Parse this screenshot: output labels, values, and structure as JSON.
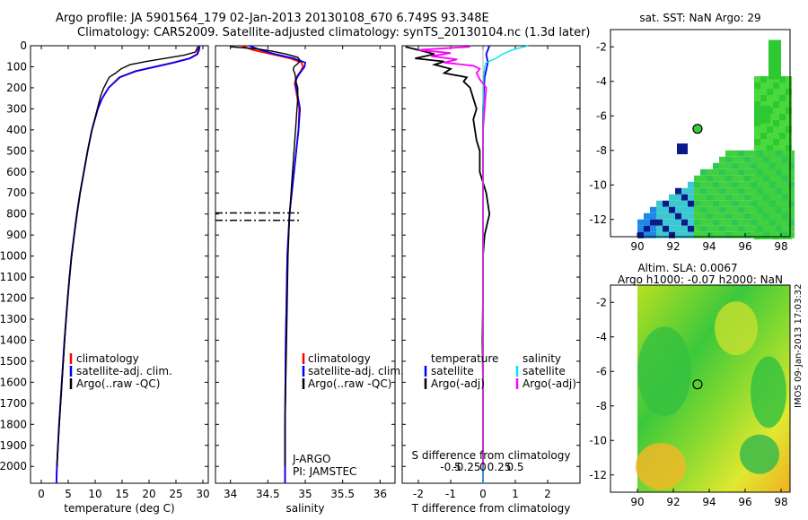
{
  "header": {
    "line1": "Argo profile: JA 5901564_179 02-Jan-2013 20130108_670 6.749S 93.348E",
    "line2": "Climatology: CARS2009. Satellite-adjusted climatology: synTS_20130104.nc (1.3d later)"
  },
  "stamp": "IMOS 09-Jan-2013 17:03:32",
  "chart_data": [
    {
      "id": "temperature",
      "type": "line",
      "xlabel": "temperature (deg C)",
      "ylabel": "",
      "xlim": [
        -2,
        31
      ],
      "ylim": [
        2080,
        0
      ],
      "xticks": [
        0,
        5,
        10,
        15,
        20,
        25,
        30
      ],
      "xticklabels": [
        "0",
        "5",
        "10",
        "15",
        "20",
        "25",
        "30"
      ],
      "yticks": [
        0,
        100,
        200,
        300,
        400,
        500,
        600,
        700,
        800,
        900,
        1000,
        1100,
        1200,
        1300,
        1400,
        1500,
        1600,
        1700,
        1800,
        1900,
        2000
      ],
      "yticklabels": [
        "0",
        "100",
        "200",
        "300",
        "400",
        "500",
        "600",
        "700",
        "800",
        "900",
        "1000",
        "1100",
        "1200",
        "1300",
        "1400",
        "1500",
        "1600",
        "1700",
        "1800",
        "1900",
        "2000"
      ],
      "legend": [
        "climatology",
        "satellite-adj. clim.",
        "Argo(..raw -QC)"
      ],
      "series": [
        {
          "name": "climatology",
          "color": "#ff0000",
          "depth": [
            0,
            20,
            40,
            60,
            80,
            100,
            120,
            150,
            200,
            250,
            300,
            400,
            500,
            600,
            700,
            800,
            1000,
            1200,
            1400,
            1600,
            1800,
            2000,
            2080
          ],
          "values": [
            29.2,
            29.1,
            28.9,
            27.5,
            24.5,
            21.0,
            17.5,
            14.5,
            12.5,
            11.3,
            10.5,
            9.4,
            8.6,
            7.9,
            7.2,
            6.6,
            5.6,
            4.9,
            4.3,
            3.8,
            3.3,
            2.9,
            2.8
          ]
        },
        {
          "name": "satellite-adj. clim.",
          "color": "#0000ff",
          "depth": [
            0,
            20,
            40,
            60,
            80,
            100,
            120,
            150,
            200,
            250,
            300,
            400,
            500,
            600,
            700,
            800,
            1000,
            1200,
            1400,
            1600,
            1800,
            2000,
            2080
          ],
          "values": [
            29.4,
            29.3,
            29.0,
            27.6,
            24.7,
            21.2,
            17.7,
            14.6,
            12.5,
            11.3,
            10.5,
            9.4,
            8.6,
            7.9,
            7.2,
            6.6,
            5.6,
            4.9,
            4.3,
            3.8,
            3.3,
            2.9,
            2.8
          ]
        },
        {
          "name": "Argo(..raw -QC)",
          "color": "#000000",
          "depth": [
            5,
            15,
            30,
            45,
            60,
            75,
            90,
            110,
            130,
            150,
            170,
            200,
            240,
            280,
            330,
            400,
            500,
            700,
            900,
            1100,
            1300,
            1500,
            1700,
            1900,
            2000
          ],
          "values": [
            29.0,
            28.9,
            28.6,
            26.5,
            23.0,
            19.5,
            16.5,
            14.8,
            13.8,
            12.6,
            12.2,
            11.6,
            11.0,
            10.6,
            10.1,
            9.4,
            8.6,
            7.2,
            6.1,
            5.2,
            4.6,
            4.1,
            3.6,
            3.1,
            2.9
          ]
        }
      ]
    },
    {
      "id": "salinity",
      "type": "line",
      "xlabel": "salinity",
      "xlim": [
        33.8,
        36.2
      ],
      "ylim": [
        2080,
        0
      ],
      "xticks": [
        34,
        34.5,
        35,
        35.5,
        36
      ],
      "xticklabels": [
        "34",
        "34.5",
        "35",
        "35.5",
        "36"
      ],
      "legend": [
        "climatology",
        "satellite-adj. clim.",
        "Argo(..raw -QC)"
      ],
      "annotations": [
        "J-ARGO",
        "PI: JAMSTEC"
      ],
      "qc_depths": [
        795,
        830
      ],
      "series": [
        {
          "name": "climatology",
          "color": "#ff0000",
          "depth": [
            0,
            20,
            40,
            60,
            80,
            100,
            120,
            140,
            160,
            180,
            200,
            300,
            400,
            500,
            600,
            700,
            800,
            1000,
            1200,
            1400,
            1600,
            1800,
            2000,
            2080
          ],
          "values": [
            34.15,
            34.3,
            34.55,
            34.8,
            34.95,
            34.97,
            34.94,
            34.9,
            34.87,
            34.86,
            34.87,
            34.92,
            34.91,
            34.88,
            34.85,
            34.82,
            34.79,
            34.76,
            34.75,
            34.74,
            34.735,
            34.73,
            34.73,
            34.73
          ]
        },
        {
          "name": "satellite-adj. clim.",
          "color": "#0000ff",
          "depth": [
            0,
            20,
            40,
            60,
            80,
            100,
            120,
            140,
            160,
            180,
            200,
            300,
            400,
            500,
            600,
            700,
            800,
            1000,
            1200,
            1400,
            1600,
            1800,
            2000,
            2080
          ],
          "values": [
            34.25,
            34.4,
            34.6,
            34.85,
            35.0,
            34.99,
            34.95,
            34.91,
            34.88,
            34.87,
            34.88,
            34.93,
            34.91,
            34.88,
            34.85,
            34.82,
            34.79,
            34.76,
            34.75,
            34.74,
            34.735,
            34.73,
            34.73,
            34.73
          ]
        },
        {
          "name": "Argo(..raw -QC)",
          "color": "#000000",
          "depth": [
            5,
            15,
            25,
            40,
            55,
            70,
            85,
            100,
            115,
            130,
            150,
            175,
            200,
            250,
            300,
            400,
            500,
            600,
            700,
            800,
            900,
            1000,
            1200,
            1400,
            1600,
            1800,
            2000
          ],
          "values": [
            34.0,
            34.35,
            34.55,
            34.75,
            34.9,
            34.93,
            34.9,
            34.85,
            34.84,
            34.86,
            34.87,
            34.88,
            34.9,
            34.9,
            34.89,
            34.87,
            34.85,
            34.83,
            34.81,
            34.79,
            34.78,
            34.77,
            34.76,
            34.75,
            34.74,
            34.73,
            34.73
          ]
        }
      ]
    },
    {
      "id": "difference",
      "type": "line",
      "xlabel": "T difference from climatology",
      "xlabel_top": "S difference from climatology",
      "xlim": [
        -2.5,
        3.0
      ],
      "ylim": [
        2080,
        0
      ],
      "xticks": [
        -2,
        -1,
        0,
        1,
        2
      ],
      "xticklabels": [
        "-2",
        "-1",
        "0",
        "1",
        "2"
      ],
      "xticks_top": [
        -1,
        -0.5,
        0,
        0.5,
        1
      ],
      "xticklabels_top": [
        "-0.5",
        "-0.25",
        "0",
        "0.25",
        "0.5"
      ],
      "legend_headers": [
        "temperature",
        "salinity"
      ],
      "legend": [
        "satellite",
        "Argo(-adj)",
        "satellite",
        "Argo(-adj)"
      ],
      "series": [
        {
          "name": "T satellite",
          "color": "#0000ff",
          "depth": [
            0,
            40,
            80,
            150,
            300,
            600,
            1000,
            1500,
            2080
          ],
          "values": [
            0.2,
            0.1,
            0.15,
            0.05,
            0.0,
            0.0,
            0.0,
            0.0,
            0.0
          ]
        },
        {
          "name": "T Argo(-adj)",
          "color": "#000000",
          "depth": [
            5,
            20,
            40,
            60,
            75,
            90,
            110,
            130,
            150,
            170,
            200,
            250,
            300,
            350,
            400,
            450,
            500,
            600,
            700,
            800,
            900,
            1000,
            1200,
            1400,
            1600,
            1800,
            2000
          ],
          "values": [
            -2.4,
            -2.0,
            -1.5,
            -2.1,
            -1.2,
            -1.5,
            -1.0,
            -1.2,
            -0.5,
            -0.6,
            -0.4,
            -0.3,
            -0.2,
            -0.3,
            -0.25,
            -0.2,
            -0.1,
            -0.1,
            0.1,
            0.2,
            0.05,
            0.0,
            0.0,
            -0.02,
            0.0,
            0.0,
            0.0
          ]
        },
        {
          "name": "S satellite",
          "color": "#00e5e5",
          "depth": [
            0,
            20,
            40,
            60,
            80,
            100,
            150,
            300,
            600,
            1000,
            1500,
            2080
          ],
          "values": [
            1.4,
            0.9,
            0.6,
            0.4,
            0.1,
            0.05,
            0.02,
            0.0,
            0.0,
            0.0,
            0.0,
            0.0
          ]
        },
        {
          "name": "S Argo(-adj)",
          "color": "#ff00ff",
          "depth": [
            5,
            20,
            35,
            50,
            65,
            80,
            95,
            110,
            130,
            160,
            200,
            300,
            400,
            500,
            600,
            800,
            1000,
            1200,
            1400,
            1600,
            1800,
            2000
          ],
          "values": [
            -0.4,
            -2.0,
            -1.0,
            -1.6,
            -0.8,
            -1.2,
            -0.3,
            -0.1,
            -0.2,
            -0.1,
            0.1,
            0.05,
            0.0,
            0.0,
            0.0,
            0.0,
            0.0,
            0.0,
            0.0,
            0.0,
            0.0,
            0.0
          ]
        }
      ]
    },
    {
      "id": "sst_map",
      "type": "heatmap",
      "title": "sat. SST: NaN Argo: 29",
      "xlim": [
        88.5,
        98.5
      ],
      "ylim": [
        -13,
        -1
      ],
      "xticks": [
        90,
        92,
        94,
        96,
        98
      ],
      "xticklabels": [
        "90",
        "92",
        "94",
        "96",
        "98"
      ],
      "yticks": [
        -2,
        -4,
        -6,
        -8,
        -10,
        -12
      ],
      "yticklabels": [
        "-2",
        "-4",
        "-6",
        "-8",
        "-10",
        "-12"
      ],
      "argo_position": {
        "lon": 93.348,
        "lat": -6.749
      }
    },
    {
      "id": "sla_map",
      "type": "heatmap",
      "title1": "Altim. SLA: 0.0067",
      "title2": "Argo h1000: -0.07 h2000: NaN",
      "xlim": [
        88.5,
        98.5
      ],
      "ylim": [
        -13,
        -1
      ],
      "xticks": [
        90,
        92,
        94,
        96,
        98
      ],
      "xticklabels": [
        "90",
        "92",
        "94",
        "96",
        "98"
      ],
      "yticks": [
        -2,
        -4,
        -6,
        -8,
        -10,
        -12
      ],
      "yticklabels": [
        "-2",
        "-4",
        "-6",
        "-8",
        "-10",
        "-12"
      ],
      "argo_position": {
        "lon": 93.348,
        "lat": -6.749
      }
    }
  ]
}
